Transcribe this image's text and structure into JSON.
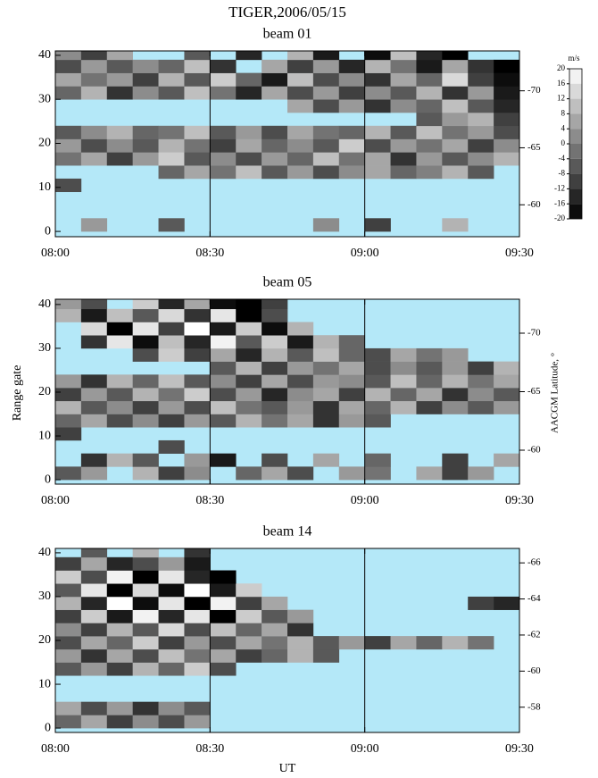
{
  "title": "TIGER,2006/05/15",
  "xlabel": "UT",
  "ylabel": "Range gate",
  "y2label": "AACGM Latitude, °",
  "nodata_color": "#b4e8f8",
  "colorbar": {
    "label": "m/s",
    "lim": [
      -20,
      20
    ],
    "ticks": [
      20,
      16,
      12,
      8,
      4,
      0,
      -4,
      -8,
      -12,
      -16,
      -20
    ]
  },
  "chart_data": [
    {
      "type": "heatmap",
      "title": "beam 01",
      "xlim": [
        0,
        90
      ],
      "xticks": [
        {
          "value": 0,
          "label": "08:00"
        },
        {
          "value": 30,
          "label": "08:30"
        },
        {
          "value": 60,
          "label": "09:00"
        },
        {
          "value": 90,
          "label": "09:30"
        }
      ],
      "ylim": [
        -1.2,
        41
      ],
      "yticks": [
        0,
        10,
        20,
        30,
        40
      ],
      "y2lim": [
        -57.2,
        -73.5
      ],
      "y2ticks": [
        -70,
        -65,
        -60
      ],
      "vlines": [
        30,
        60
      ],
      "xbins": [
        0,
        5,
        10,
        15,
        20,
        25,
        30,
        35,
        40,
        45,
        50,
        55,
        60,
        65,
        70,
        75,
        80,
        85,
        90
      ],
      "ybins": [
        0,
        3,
        6,
        9,
        12,
        15,
        18,
        21,
        24,
        27,
        30,
        33,
        36,
        39,
        42
      ],
      "values": [
        [
          null,
          4,
          null,
          null,
          -6,
          null,
          null,
          null,
          null,
          null,
          2,
          null,
          -10,
          null,
          null,
          8,
          null,
          null
        ],
        [
          null,
          null,
          null,
          null,
          null,
          null,
          null,
          null,
          null,
          null,
          null,
          null,
          null,
          null,
          null,
          null,
          null,
          null
        ],
        [
          null,
          null,
          null,
          null,
          null,
          null,
          null,
          null,
          null,
          null,
          null,
          null,
          null,
          null,
          null,
          null,
          null,
          null
        ],
        [
          -8,
          null,
          null,
          null,
          null,
          null,
          null,
          null,
          null,
          null,
          null,
          null,
          null,
          null,
          null,
          null,
          null,
          null
        ],
        [
          null,
          null,
          null,
          null,
          -4,
          6,
          -2,
          10,
          -6,
          4,
          -8,
          2,
          6,
          -4,
          0,
          8,
          -6,
          null
        ],
        [
          -2,
          6,
          -10,
          4,
          12,
          -6,
          2,
          -8,
          4,
          -4,
          10,
          -2,
          6,
          -12,
          4,
          -6,
          2,
          8
        ],
        [
          4,
          -8,
          2,
          -6,
          8,
          -2,
          -10,
          6,
          -4,
          2,
          -6,
          12,
          -8,
          4,
          -2,
          6,
          -10,
          2
        ],
        [
          -6,
          2,
          8,
          -4,
          -2,
          10,
          -6,
          4,
          -8,
          6,
          -2,
          -4,
          8,
          -6,
          10,
          -2,
          4,
          -8
        ],
        [
          null,
          null,
          null,
          null,
          null,
          null,
          null,
          null,
          null,
          null,
          null,
          null,
          null,
          null,
          -6,
          4,
          8,
          -10
        ],
        [
          null,
          null,
          null,
          null,
          null,
          null,
          null,
          null,
          null,
          6,
          -8,
          4,
          -12,
          2,
          -4,
          10,
          -6,
          -14
        ],
        [
          -4,
          8,
          -12,
          2,
          -6,
          10,
          -2,
          -14,
          6,
          -8,
          4,
          -10,
          2,
          -6,
          8,
          -12,
          4,
          -16
        ],
        [
          6,
          -2,
          4,
          -10,
          8,
          -6,
          12,
          -4,
          -16,
          10,
          -8,
          2,
          -12,
          6,
          -4,
          14,
          -10,
          -18
        ],
        [
          -8,
          4,
          -6,
          2,
          -4,
          10,
          -12,
          null,
          6,
          -10,
          4,
          -14,
          8,
          -2,
          -16,
          6,
          -12,
          -20
        ],
        [
          2,
          -10,
          6,
          null,
          null,
          -6,
          null,
          -14,
          null,
          8,
          -16,
          null,
          -18,
          10,
          -14,
          -20,
          null,
          null
        ]
      ]
    },
    {
      "type": "heatmap",
      "title": "beam 05",
      "xlim": [
        0,
        90
      ],
      "xticks": [
        {
          "value": 0,
          "label": "08:00"
        },
        {
          "value": 30,
          "label": "08:30"
        },
        {
          "value": 60,
          "label": "09:00"
        },
        {
          "value": 90,
          "label": "09:30"
        }
      ],
      "ylim": [
        -1,
        41.2
      ],
      "yticks": [
        0,
        10,
        20,
        30,
        40
      ],
      "y2lim": [
        -57.1,
        -72.9
      ],
      "y2ticks": [
        -70,
        -65,
        -60
      ],
      "vlines": [
        30,
        60
      ],
      "xbins": [
        0,
        5,
        10,
        15,
        20,
        25,
        30,
        35,
        40,
        45,
        50,
        55,
        60,
        65,
        70,
        75,
        80,
        85,
        90
      ],
      "ybins": [
        0,
        3,
        6,
        9,
        12,
        15,
        18,
        21,
        24,
        27,
        30,
        33,
        36,
        39,
        42
      ],
      "values": [
        [
          -6,
          4,
          null,
          8,
          -10,
          2,
          null,
          -4,
          6,
          -8,
          null,
          4,
          -2,
          null,
          6,
          -10,
          4,
          null
        ],
        [
          null,
          -12,
          8,
          -6,
          null,
          4,
          -16,
          null,
          -8,
          null,
          6,
          null,
          -4,
          null,
          null,
          -10,
          null,
          6
        ],
        [
          null,
          null,
          null,
          null,
          -8,
          null,
          null,
          null,
          null,
          null,
          null,
          null,
          null,
          null,
          null,
          null,
          null,
          null
        ],
        [
          -10,
          null,
          null,
          null,
          null,
          null,
          null,
          null,
          null,
          null,
          null,
          null,
          null,
          null,
          null,
          null,
          null,
          null
        ],
        [
          -4,
          6,
          -8,
          2,
          -10,
          4,
          -6,
          8,
          -2,
          6,
          -12,
          4,
          -6,
          null,
          null,
          null,
          null,
          null
        ],
        [
          8,
          -6,
          2,
          -10,
          4,
          -8,
          10,
          -2,
          -6,
          4,
          -12,
          6,
          -4,
          8,
          -10,
          2,
          -6,
          4
        ],
        [
          -10,
          4,
          -6,
          8,
          -2,
          12,
          -8,
          4,
          -14,
          2,
          6,
          -10,
          8,
          -4,
          6,
          -12,
          2,
          -6
        ],
        [
          4,
          -12,
          8,
          -4,
          10,
          -6,
          2,
          -10,
          6,
          -8,
          4,
          2,
          -6,
          10,
          -4,
          8,
          -2,
          6
        ],
        [
          null,
          null,
          null,
          null,
          null,
          null,
          -6,
          8,
          -10,
          4,
          -2,
          6,
          -8,
          2,
          -6,
          4,
          -10,
          8
        ],
        [
          null,
          null,
          null,
          -8,
          12,
          -10,
          6,
          -14,
          8,
          -6,
          10,
          -4,
          -8,
          6,
          -2,
          4,
          null,
          null
        ],
        [
          null,
          -12,
          16,
          -18,
          10,
          -14,
          18,
          -6,
          12,
          -16,
          8,
          -4,
          null,
          null,
          null,
          null,
          null,
          null
        ],
        [
          null,
          14,
          -20,
          16,
          -10,
          20,
          -16,
          12,
          -18,
          8,
          null,
          null,
          null,
          null,
          null,
          null,
          null,
          null
        ],
        [
          8,
          -16,
          10,
          -6,
          14,
          -12,
          16,
          -20,
          -8,
          null,
          null,
          null,
          null,
          null,
          null,
          null,
          null,
          null
        ],
        [
          4,
          -8,
          null,
          12,
          -14,
          6,
          -18,
          -20,
          -10,
          null,
          null,
          null,
          null,
          null,
          null,
          null,
          null,
          null
        ]
      ]
    },
    {
      "type": "heatmap",
      "title": "beam 14",
      "xlim": [
        0,
        90
      ],
      "xticks": [
        {
          "value": 0,
          "label": "08:00"
        },
        {
          "value": 30,
          "label": "08:30"
        },
        {
          "value": 60,
          "label": "09:00"
        },
        {
          "value": 90,
          "label": "09:30"
        }
      ],
      "ylim": [
        -1,
        41
      ],
      "yticks": [
        0,
        10,
        20,
        30,
        40
      ],
      "y2lim": [
        -56.6,
        -66.8
      ],
      "y2ticks": [
        -66,
        -64,
        -62,
        -60,
        -58
      ],
      "vlines": [
        30,
        60
      ],
      "xbins": [
        0,
        5,
        10,
        15,
        20,
        25,
        30,
        35,
        40,
        45,
        50,
        55,
        60,
        65,
        70,
        75,
        80,
        85,
        90
      ],
      "ybins": [
        0,
        3,
        6,
        9,
        12,
        15,
        18,
        21,
        24,
        27,
        30,
        33,
        36,
        39,
        42
      ],
      "values": [
        [
          -4,
          6,
          -10,
          2,
          -8,
          4,
          null,
          null,
          null,
          null,
          null,
          null,
          null,
          null,
          null,
          null,
          null,
          null
        ],
        [
          6,
          -8,
          4,
          -12,
          2,
          -6,
          null,
          null,
          null,
          null,
          null,
          null,
          null,
          null,
          null,
          null,
          null,
          null
        ],
        [
          null,
          null,
          null,
          null,
          null,
          null,
          null,
          null,
          null,
          null,
          null,
          null,
          null,
          null,
          null,
          null,
          null,
          null
        ],
        [
          null,
          null,
          null,
          null,
          null,
          null,
          null,
          null,
          null,
          null,
          null,
          null,
          null,
          null,
          null,
          null,
          null,
          null
        ],
        [
          -6,
          4,
          -10,
          8,
          -4,
          12,
          -8,
          null,
          null,
          null,
          null,
          null,
          null,
          null,
          null,
          null,
          null,
          null
        ],
        [
          4,
          -12,
          6,
          -8,
          10,
          -2,
          6,
          -10,
          -4,
          8,
          -6,
          null,
          null,
          null,
          null,
          null,
          null,
          null
        ],
        [
          -8,
          6,
          -4,
          12,
          -10,
          4,
          -8,
          6,
          -2,
          8,
          -6,
          4,
          -10,
          6,
          -4,
          8,
          -2,
          null
        ],
        [
          2,
          -10,
          8,
          -6,
          14,
          -8,
          10,
          -4,
          6,
          -12,
          null,
          null,
          null,
          null,
          null,
          null,
          null,
          null
        ],
        [
          -10,
          12,
          -16,
          18,
          -14,
          16,
          -20,
          12,
          -6,
          4,
          null,
          null,
          null,
          null,
          null,
          null,
          null,
          null
        ],
        [
          8,
          -14,
          20,
          -18,
          16,
          -20,
          18,
          -10,
          6,
          null,
          null,
          null,
          null,
          null,
          null,
          null,
          -10,
          -14
        ],
        [
          -6,
          16,
          -20,
          14,
          -18,
          20,
          -16,
          12,
          null,
          null,
          null,
          null,
          null,
          null,
          null,
          null,
          null,
          null
        ],
        [
          12,
          -8,
          18,
          -20,
          16,
          -14,
          -20,
          null,
          null,
          null,
          null,
          null,
          null,
          null,
          null,
          null,
          null,
          null
        ],
        [
          -10,
          6,
          -14,
          -8,
          4,
          -16,
          null,
          null,
          null,
          null,
          null,
          null,
          null,
          null,
          null,
          null,
          null,
          null
        ],
        [
          null,
          -6,
          null,
          8,
          null,
          -12,
          null,
          null,
          null,
          null,
          null,
          null,
          null,
          null,
          null,
          null,
          null,
          null
        ]
      ]
    }
  ]
}
